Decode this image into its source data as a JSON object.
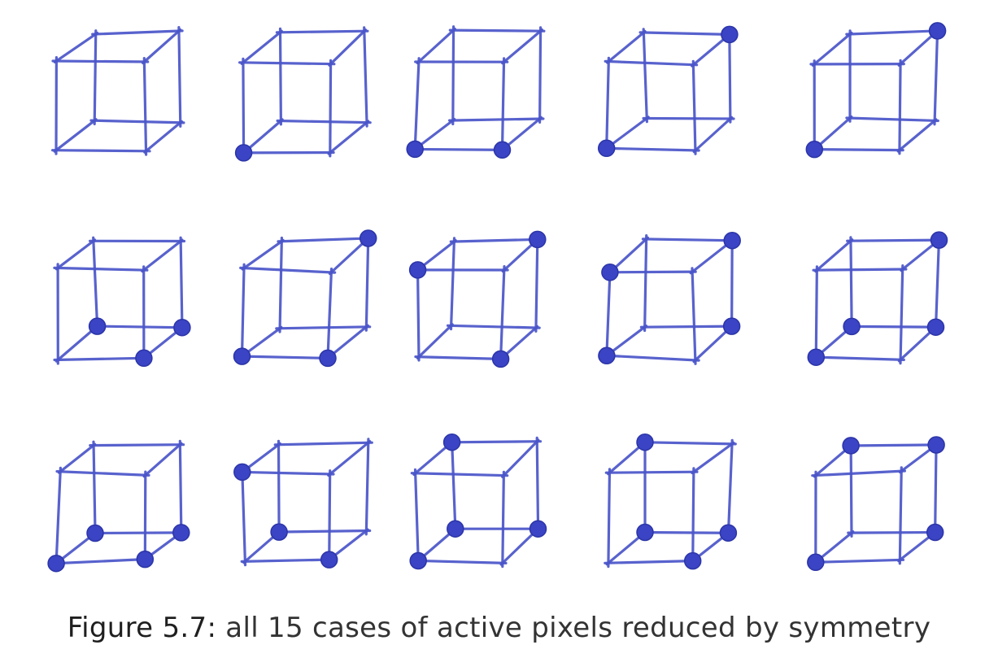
{
  "caption": {
    "label": "Figure 5.7:",
    "text": " all 15 cases of active pixels reduced by symmetry"
  },
  "colors": {
    "ink": "#4a55c9",
    "dot": "#3a44c4",
    "caption_text": "#333333"
  },
  "cube_vertex_order": [
    "front-bottom-left",
    "front-bottom-right",
    "front-top-left",
    "front-top-right",
    "back-bottom-left",
    "back-bottom-right",
    "back-top-left",
    "back-top-right"
  ],
  "cases": [
    {
      "id": 0,
      "active": []
    },
    {
      "id": 1,
      "active": [
        "front-bottom-left"
      ]
    },
    {
      "id": 2,
      "active": [
        "front-bottom-left",
        "front-bottom-right"
      ]
    },
    {
      "id": 3,
      "active": [
        "front-bottom-left",
        "back-top-right"
      ]
    },
    {
      "id": 4,
      "active": [
        "front-bottom-left",
        "back-top-right"
      ]
    },
    {
      "id": 5,
      "active": [
        "front-bottom-right",
        "back-bottom-left",
        "back-bottom-right"
      ]
    },
    {
      "id": 6,
      "active": [
        "front-bottom-left",
        "front-bottom-right",
        "back-top-right"
      ]
    },
    {
      "id": 7,
      "active": [
        "front-top-left",
        "back-top-right",
        "front-bottom-right"
      ]
    },
    {
      "id": 8,
      "active": [
        "front-bottom-left",
        "front-top-left",
        "back-top-right",
        "back-bottom-right"
      ]
    },
    {
      "id": 9,
      "active": [
        "front-bottom-left",
        "back-bottom-left",
        "back-top-right",
        "back-bottom-right"
      ]
    },
    {
      "id": 10,
      "active": [
        "front-bottom-left",
        "front-bottom-right",
        "back-bottom-left",
        "back-bottom-right"
      ]
    },
    {
      "id": 11,
      "active": [
        "front-top-left",
        "back-bottom-left",
        "front-bottom-right"
      ]
    },
    {
      "id": 12,
      "active": [
        "front-bottom-left",
        "back-bottom-left",
        "back-top-left",
        "back-bottom-right"
      ]
    },
    {
      "id": 13,
      "active": [
        "back-top-left",
        "back-bottom-left",
        "front-bottom-right",
        "back-bottom-right"
      ]
    },
    {
      "id": 14,
      "active": [
        "front-bottom-left",
        "back-top-left",
        "back-top-right",
        "back-bottom-right"
      ]
    }
  ]
}
